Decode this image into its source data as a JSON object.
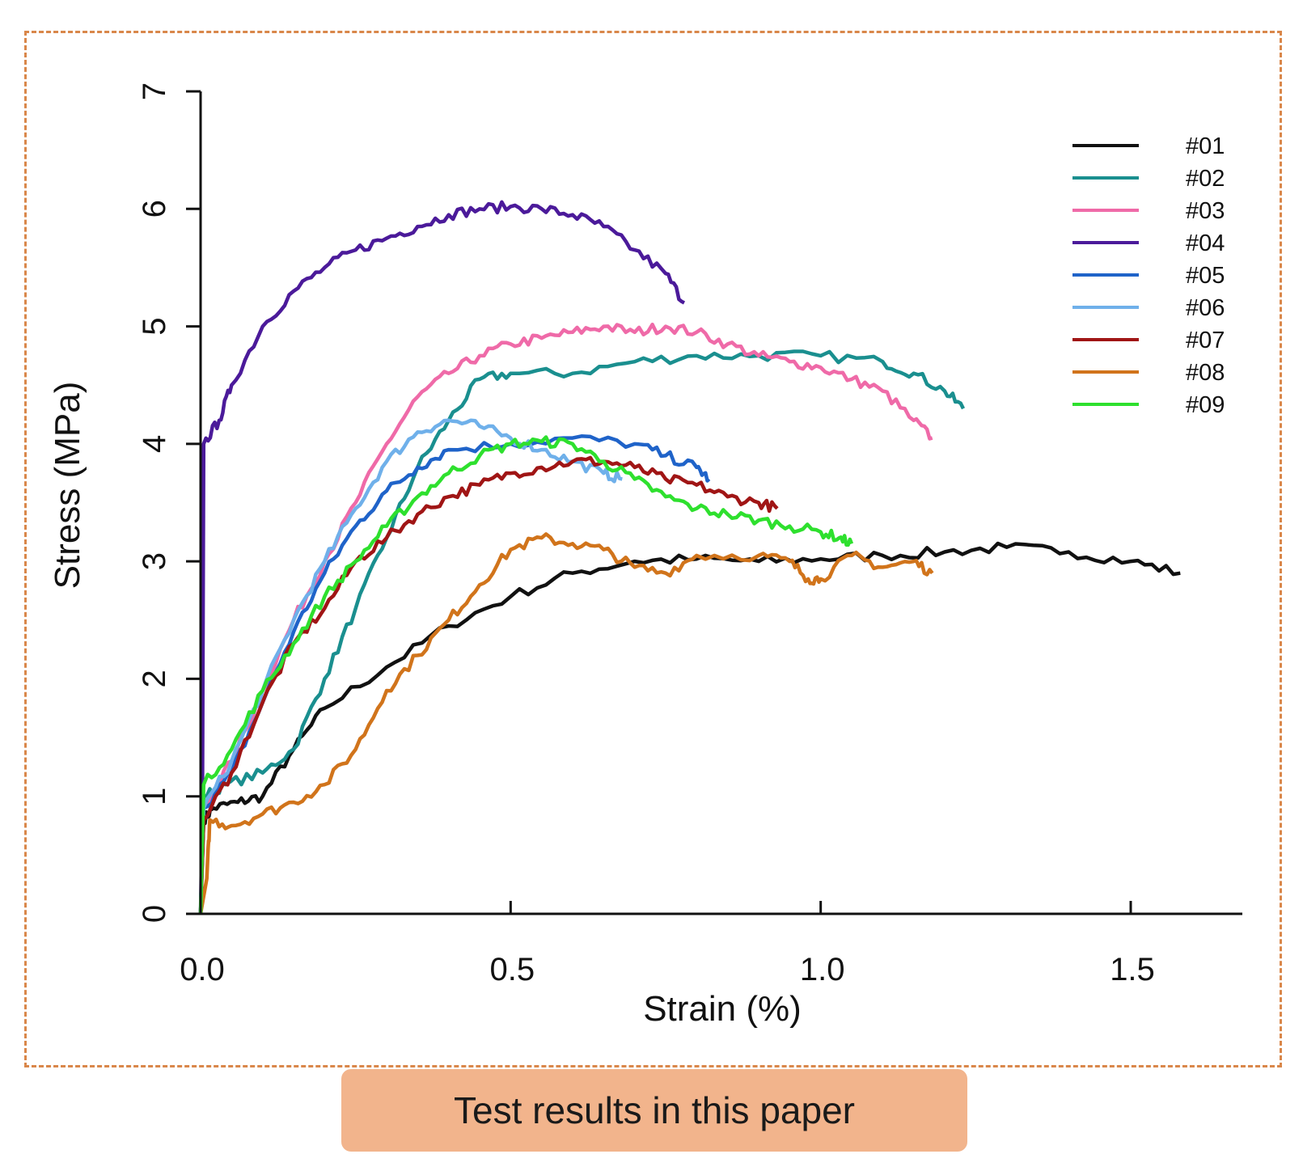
{
  "caption": "Test results in this paper",
  "chart_data": {
    "type": "line",
    "xlabel": "Strain (%)",
    "ylabel": "Stress (MPa)",
    "xlim": [
      0,
      1.68
    ],
    "ylim": [
      0,
      7
    ],
    "xticks": [
      0.0,
      0.5,
      1.0,
      1.5
    ],
    "xtick_labels": [
      "0.0",
      "0.5",
      "1.0",
      "1.5"
    ],
    "yticks": [
      0,
      1,
      2,
      3,
      4,
      5,
      6,
      7
    ],
    "ytick_labels": [
      "0",
      "1",
      "2",
      "3",
      "4",
      "5",
      "6",
      "7"
    ],
    "legend_position": "top-right",
    "series": [
      {
        "name": "#01",
        "color": "#111111",
        "points": [
          [
            0.0,
            0
          ],
          [
            0.005,
            0.8
          ],
          [
            0.02,
            0.9
          ],
          [
            0.06,
            0.95
          ],
          [
            0.1,
            1.0
          ],
          [
            0.15,
            1.4
          ],
          [
            0.2,
            1.75
          ],
          [
            0.3,
            2.1
          ],
          [
            0.4,
            2.45
          ],
          [
            0.5,
            2.7
          ],
          [
            0.6,
            2.9
          ],
          [
            0.7,
            3.0
          ],
          [
            0.8,
            3.02
          ],
          [
            0.9,
            3.0
          ],
          [
            1.0,
            3.02
          ],
          [
            1.1,
            3.05
          ],
          [
            1.2,
            3.08
          ],
          [
            1.3,
            3.12
          ],
          [
            1.4,
            3.08
          ],
          [
            1.5,
            3.0
          ],
          [
            1.58,
            2.9
          ]
        ]
      },
      {
        "name": "#02",
        "color": "#1a8f8f",
        "points": [
          [
            0.0,
            0
          ],
          [
            0.005,
            1.0
          ],
          [
            0.04,
            1.1
          ],
          [
            0.1,
            1.2
          ],
          [
            0.15,
            1.4
          ],
          [
            0.2,
            2.0
          ],
          [
            0.25,
            2.6
          ],
          [
            0.3,
            3.2
          ],
          [
            0.35,
            3.8
          ],
          [
            0.4,
            4.2
          ],
          [
            0.45,
            4.55
          ],
          [
            0.5,
            4.6
          ],
          [
            0.6,
            4.6
          ],
          [
            0.7,
            4.7
          ],
          [
            0.8,
            4.75
          ],
          [
            0.9,
            4.75
          ],
          [
            1.0,
            4.75
          ],
          [
            1.1,
            4.7
          ],
          [
            1.15,
            4.6
          ],
          [
            1.2,
            4.45
          ],
          [
            1.23,
            4.3
          ]
        ]
      },
      {
        "name": "#03",
        "color": "#ef6aa8",
        "points": [
          [
            0.0,
            0
          ],
          [
            0.005,
            0.9
          ],
          [
            0.05,
            1.3
          ],
          [
            0.1,
            1.9
          ],
          [
            0.15,
            2.5
          ],
          [
            0.2,
            3.0
          ],
          [
            0.25,
            3.5
          ],
          [
            0.3,
            4.0
          ],
          [
            0.35,
            4.4
          ],
          [
            0.4,
            4.6
          ],
          [
            0.45,
            4.75
          ],
          [
            0.5,
            4.85
          ],
          [
            0.55,
            4.9
          ],
          [
            0.6,
            4.95
          ],
          [
            0.65,
            5.0
          ],
          [
            0.7,
            4.95
          ],
          [
            0.75,
            5.0
          ],
          [
            0.8,
            4.95
          ],
          [
            0.85,
            4.85
          ],
          [
            0.9,
            4.75
          ],
          [
            0.95,
            4.7
          ],
          [
            1.0,
            4.65
          ],
          [
            1.05,
            4.55
          ],
          [
            1.1,
            4.45
          ],
          [
            1.15,
            4.2
          ],
          [
            1.18,
            4.05
          ]
        ]
      },
      {
        "name": "#04",
        "color": "#4b1a9a",
        "points": [
          [
            0.0,
            0
          ],
          [
            0.003,
            1.0
          ],
          [
            0.005,
            4.0
          ],
          [
            0.03,
            4.2
          ],
          [
            0.05,
            4.5
          ],
          [
            0.1,
            5.0
          ],
          [
            0.15,
            5.3
          ],
          [
            0.2,
            5.5
          ],
          [
            0.25,
            5.65
          ],
          [
            0.3,
            5.75
          ],
          [
            0.35,
            5.85
          ],
          [
            0.4,
            5.95
          ],
          [
            0.45,
            6.0
          ],
          [
            0.5,
            6.02
          ],
          [
            0.55,
            6.0
          ],
          [
            0.6,
            5.95
          ],
          [
            0.65,
            5.85
          ],
          [
            0.7,
            5.65
          ],
          [
            0.75,
            5.45
          ],
          [
            0.78,
            5.2
          ]
        ]
      },
      {
        "name": "#05",
        "color": "#1f63c9",
        "points": [
          [
            0.0,
            0
          ],
          [
            0.005,
            0.9
          ],
          [
            0.05,
            1.2
          ],
          [
            0.1,
            1.8
          ],
          [
            0.15,
            2.4
          ],
          [
            0.2,
            2.9
          ],
          [
            0.25,
            3.3
          ],
          [
            0.3,
            3.6
          ],
          [
            0.35,
            3.8
          ],
          [
            0.4,
            3.95
          ],
          [
            0.5,
            4.0
          ],
          [
            0.6,
            4.05
          ],
          [
            0.7,
            4.0
          ],
          [
            0.75,
            3.9
          ],
          [
            0.8,
            3.8
          ],
          [
            0.82,
            3.7
          ]
        ]
      },
      {
        "name": "#06",
        "color": "#6fb0ea",
        "points": [
          [
            0.0,
            0
          ],
          [
            0.005,
            0.9
          ],
          [
            0.05,
            1.3
          ],
          [
            0.1,
            1.9
          ],
          [
            0.15,
            2.5
          ],
          [
            0.2,
            3.0
          ],
          [
            0.25,
            3.45
          ],
          [
            0.3,
            3.85
          ],
          [
            0.35,
            4.1
          ],
          [
            0.4,
            4.2
          ],
          [
            0.45,
            4.15
          ],
          [
            0.5,
            4.05
          ],
          [
            0.55,
            3.95
          ],
          [
            0.6,
            3.85
          ],
          [
            0.65,
            3.75
          ],
          [
            0.68,
            3.7
          ]
        ]
      },
      {
        "name": "#07",
        "color": "#a01515",
        "points": [
          [
            0.0,
            0
          ],
          [
            0.005,
            0.8
          ],
          [
            0.05,
            1.2
          ],
          [
            0.1,
            1.8
          ],
          [
            0.15,
            2.3
          ],
          [
            0.2,
            2.6
          ],
          [
            0.25,
            3.0
          ],
          [
            0.3,
            3.2
          ],
          [
            0.35,
            3.4
          ],
          [
            0.4,
            3.55
          ],
          [
            0.45,
            3.65
          ],
          [
            0.5,
            3.75
          ],
          [
            0.55,
            3.8
          ],
          [
            0.6,
            3.85
          ],
          [
            0.65,
            3.85
          ],
          [
            0.7,
            3.8
          ],
          [
            0.75,
            3.7
          ],
          [
            0.8,
            3.65
          ],
          [
            0.85,
            3.55
          ],
          [
            0.9,
            3.5
          ],
          [
            0.93,
            3.45
          ]
        ]
      },
      {
        "name": "#08",
        "color": "#d1741b",
        "points": [
          [
            0.0,
            0
          ],
          [
            0.01,
            0.3
          ],
          [
            0.015,
            0.8
          ],
          [
            0.05,
            0.75
          ],
          [
            0.1,
            0.85
          ],
          [
            0.15,
            0.95
          ],
          [
            0.2,
            1.1
          ],
          [
            0.25,
            1.4
          ],
          [
            0.3,
            1.9
          ],
          [
            0.35,
            2.2
          ],
          [
            0.4,
            2.5
          ],
          [
            0.45,
            2.8
          ],
          [
            0.5,
            3.1
          ],
          [
            0.55,
            3.2
          ],
          [
            0.6,
            3.15
          ],
          [
            0.65,
            3.1
          ],
          [
            0.7,
            2.95
          ],
          [
            0.75,
            2.9
          ],
          [
            0.8,
            3.05
          ],
          [
            0.9,
            3.05
          ],
          [
            0.95,
            3.0
          ],
          [
            0.98,
            2.85
          ],
          [
            1.0,
            2.85
          ],
          [
            1.05,
            3.05
          ],
          [
            1.1,
            2.95
          ],
          [
            1.15,
            3.0
          ],
          [
            1.18,
            2.9
          ]
        ]
      },
      {
        "name": "#09",
        "color": "#2ee02e",
        "points": [
          [
            0.0,
            0
          ],
          [
            0.005,
            1.1
          ],
          [
            0.05,
            1.4
          ],
          [
            0.1,
            1.9
          ],
          [
            0.15,
            2.3
          ],
          [
            0.2,
            2.7
          ],
          [
            0.25,
            3.0
          ],
          [
            0.3,
            3.3
          ],
          [
            0.35,
            3.55
          ],
          [
            0.4,
            3.75
          ],
          [
            0.45,
            3.9
          ],
          [
            0.5,
            4.0
          ],
          [
            0.55,
            4.02
          ],
          [
            0.6,
            4.0
          ],
          [
            0.65,
            3.85
          ],
          [
            0.7,
            3.7
          ],
          [
            0.75,
            3.55
          ],
          [
            0.8,
            3.45
          ],
          [
            0.85,
            3.4
          ],
          [
            0.9,
            3.35
          ],
          [
            0.95,
            3.3
          ],
          [
            1.0,
            3.25
          ],
          [
            1.03,
            3.2
          ],
          [
            1.05,
            3.15
          ]
        ]
      }
    ]
  }
}
